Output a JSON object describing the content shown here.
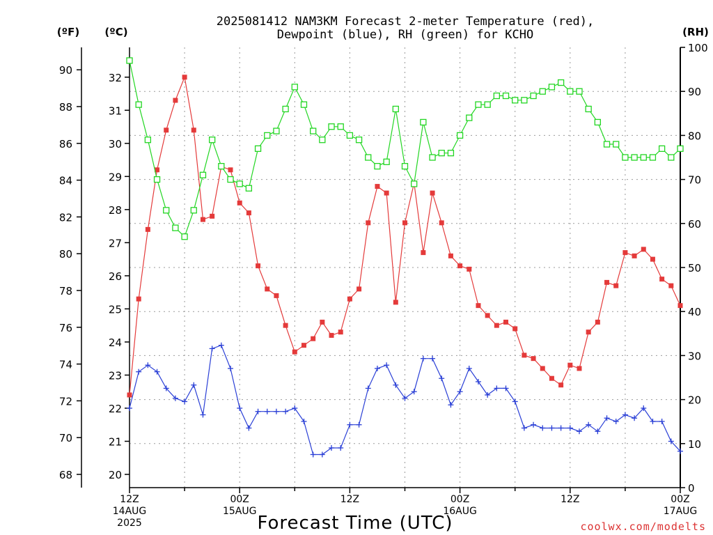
{
  "chart_data": {
    "type": "line",
    "title_line1": "2025081412 NAM3KM Forecast 2-meter Temperature (red),",
    "title_line2": "Dewpoint (blue), RH (green) for KCHO",
    "xlabel": "Forecast Time (UTC)",
    "credit": "coolwx.com/modelts",
    "unit_labels": {
      "fahrenheit": "(ºF)",
      "celsius": "(ºC)",
      "rh": "(RH)"
    },
    "x_range_hours": [
      0,
      60
    ],
    "x_ticks": [
      {
        "hour": 0,
        "lines": [
          "12Z",
          "14AUG",
          "2025"
        ]
      },
      {
        "hour": 12,
        "lines": [
          "00Z",
          "15AUG"
        ]
      },
      {
        "hour": 24,
        "lines": [
          "12Z"
        ]
      },
      {
        "hour": 36,
        "lines": [
          "00Z",
          "16AUG"
        ]
      },
      {
        "hour": 48,
        "lines": [
          "12Z"
        ]
      },
      {
        "hour": 60,
        "lines": [
          "00Z",
          "17AUG"
        ]
      }
    ],
    "celsius_range": [
      19.6,
      32.9
    ],
    "celsius_ticks": [
      20,
      21,
      22,
      23,
      24,
      25,
      26,
      27,
      28,
      29,
      30,
      31,
      32
    ],
    "fahrenheit_ticks": [
      68,
      70,
      72,
      74,
      76,
      78,
      80,
      82,
      84,
      86,
      88,
      90
    ],
    "rh_range": [
      0,
      100
    ],
    "rh_ticks": [
      0,
      10,
      20,
      30,
      40,
      50,
      60,
      70,
      80,
      90,
      100
    ],
    "grid": true,
    "series": [
      {
        "name": "2-meter Temperature",
        "unit": "C",
        "color": "#e43a3a",
        "marker": "filled-square",
        "values": [
          22.4,
          25.3,
          27.4,
          29.2,
          30.4,
          31.3,
          32.0,
          30.4,
          27.7,
          27.8,
          29.3,
          29.2,
          28.2,
          27.9,
          26.3,
          25.6,
          25.4,
          24.5,
          23.7,
          23.9,
          24.1,
          24.6,
          24.2,
          24.3,
          25.3,
          25.6,
          27.6,
          28.7,
          28.5,
          25.2,
          27.6,
          28.8,
          26.7,
          28.5,
          27.6,
          26.6,
          26.3,
          26.2,
          25.1,
          24.8,
          24.5,
          24.6,
          24.4,
          23.6,
          23.5,
          23.2,
          22.9,
          22.7,
          23.3,
          23.2,
          24.3,
          24.6,
          25.8,
          25.7,
          26.7,
          26.6,
          26.8,
          26.5,
          25.9,
          25.7,
          25.1
        ]
      },
      {
        "name": "Dewpoint",
        "unit": "C",
        "color": "#2a3fd6",
        "marker": "plus",
        "values": [
          22.0,
          23.1,
          23.3,
          23.1,
          22.6,
          22.3,
          22.2,
          22.7,
          21.8,
          23.8,
          23.9,
          23.2,
          22.0,
          21.4,
          21.9,
          21.9,
          21.9,
          21.9,
          22.0,
          21.6,
          20.6,
          20.6,
          20.8,
          20.8,
          21.5,
          21.5,
          22.6,
          23.2,
          23.3,
          22.7,
          22.3,
          22.5,
          23.5,
          23.5,
          22.9,
          22.1,
          22.5,
          23.2,
          22.8,
          22.4,
          22.6,
          22.6,
          22.2,
          21.4,
          21.5,
          21.4,
          21.4,
          21.4,
          21.4,
          21.3,
          21.5,
          21.3,
          21.7,
          21.6,
          21.8,
          21.7,
          22.0,
          21.6,
          21.6,
          21.0,
          20.7
        ]
      },
      {
        "name": "RH",
        "unit": "%",
        "color": "#22d622",
        "marker": "open-square",
        "values": [
          97,
          87,
          79,
          70,
          63,
          59,
          57,
          63,
          71,
          79,
          73,
          70,
          69,
          68,
          77,
          80,
          81,
          86,
          91,
          87,
          81,
          79,
          82,
          82,
          80,
          79,
          75,
          73,
          74,
          86,
          73,
          69,
          83,
          75,
          76,
          76,
          80,
          84,
          87,
          87,
          89,
          89,
          88,
          88,
          89,
          90,
          91,
          92,
          90,
          90,
          86,
          83,
          78,
          78,
          75,
          75,
          75,
          75,
          77,
          75,
          77
        ]
      }
    ]
  }
}
